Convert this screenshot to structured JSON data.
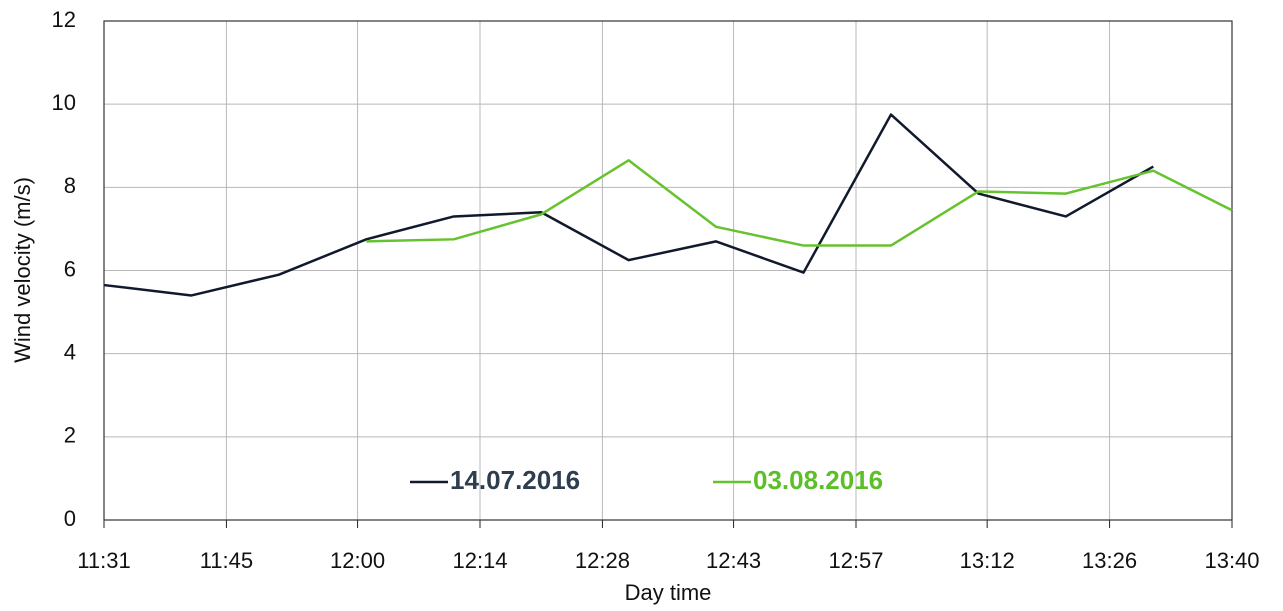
{
  "chart_data": {
    "type": "line",
    "x_label": "Day time",
    "y_label": "Wind velocity (m/s)",
    "x": [
      691,
      701,
      711,
      721,
      731,
      741,
      751,
      761,
      771,
      781,
      791,
      801,
      811,
      820
    ],
    "series": [
      {
        "name": "14.07.2016",
        "color": "#111a2c",
        "legend_color": "#2e3e50",
        "values": [
          5.65,
          5.4,
          5.9,
          6.75,
          7.3,
          7.4,
          6.25,
          6.7,
          5.95,
          9.75,
          7.85,
          7.3,
          8.5,
          null
        ]
      },
      {
        "name": "03.08.2016",
        "color": "#66c22e",
        "legend_color": "#5cbf2a",
        "values": [
          null,
          null,
          null,
          6.7,
          6.75,
          7.35,
          8.65,
          7.05,
          6.6,
          6.6,
          7.9,
          7.85,
          8.4,
          7.45
        ]
      }
    ],
    "xlim": [
      691,
      820
    ],
    "xticks": [
      {
        "value": 691,
        "label": "11:31"
      },
      {
        "value": 705,
        "label": "11:45"
      },
      {
        "value": 720,
        "label": "12:00"
      },
      {
        "value": 734,
        "label": "12:14"
      },
      {
        "value": 748,
        "label": "12:28"
      },
      {
        "value": 763,
        "label": "12:43"
      },
      {
        "value": 777,
        "label": "12:57"
      },
      {
        "value": 792,
        "label": "13:12"
      },
      {
        "value": 806,
        "label": "13:26"
      },
      {
        "value": 820,
        "label": "13:40"
      }
    ],
    "ylim": [
      0,
      12
    ],
    "yticks": [
      0,
      2,
      4,
      6,
      8,
      10,
      12
    ],
    "grid": true,
    "legend": "bottom"
  }
}
